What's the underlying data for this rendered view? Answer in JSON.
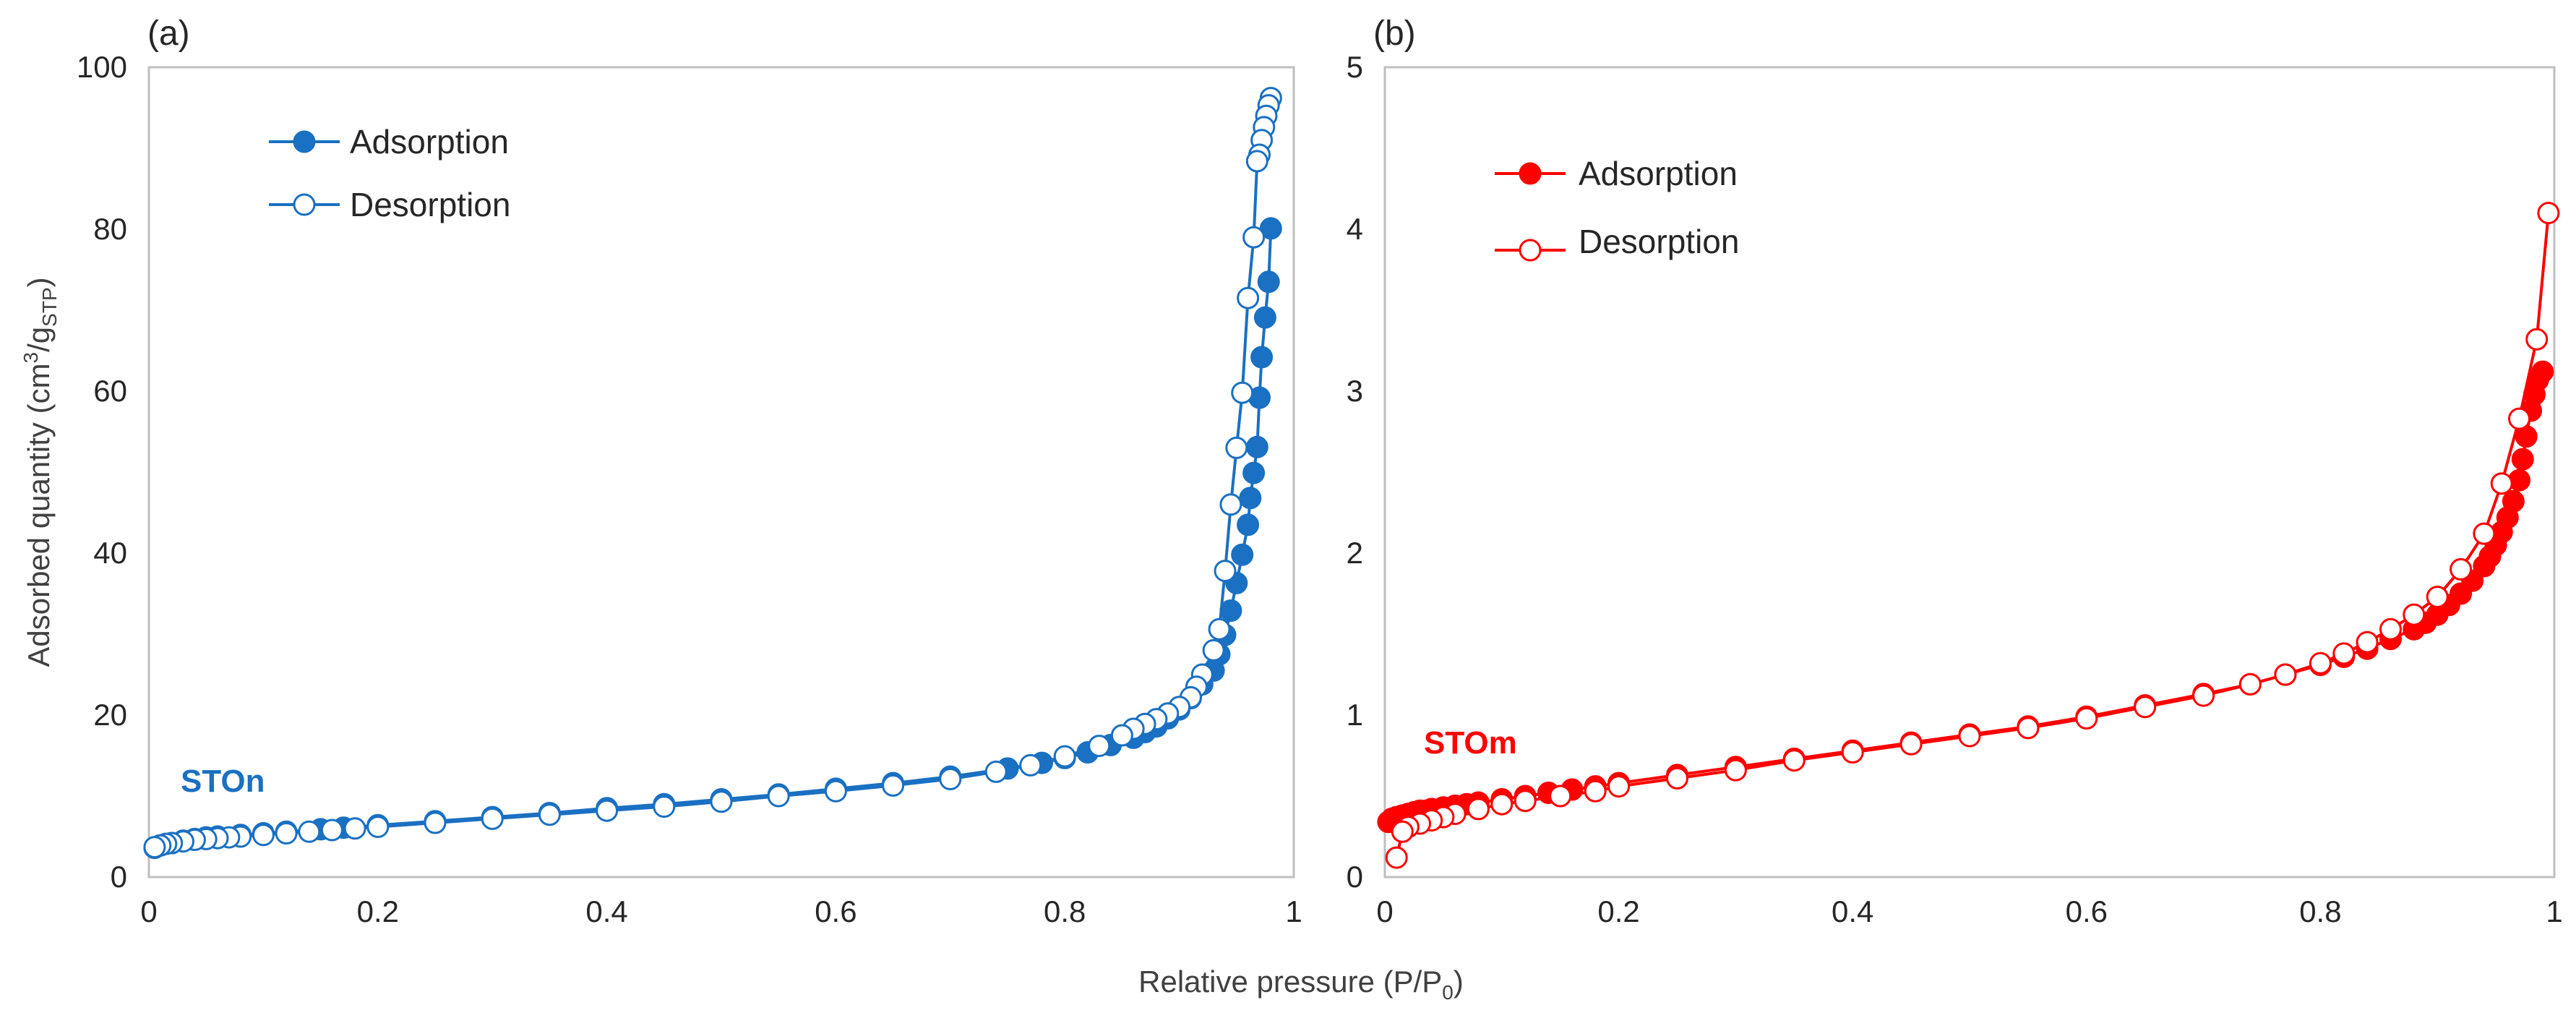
{
  "figure": {
    "x_label_text": "Relative pressure (P/P",
    "x_label_sub": "0",
    "x_label_close": ")"
  },
  "chart_data": [
    {
      "type": "scatter",
      "panel_label": "(a)",
      "sample_label": "STOn",
      "color": "#1a70c2",
      "ylabel_main": "Adsorbed quantity (cm",
      "ylabel_sup": "3",
      "ylabel_mid": "/g",
      "ylabel_sub": "STP",
      "ylabel_close": ")",
      "xlim": [
        0,
        1
      ],
      "ylim": [
        0,
        100
      ],
      "xticks": [
        0,
        0.2,
        0.4,
        0.6,
        0.8,
        1
      ],
      "xtick_labels": [
        "0",
        "0.2",
        "0.4",
        "0.6",
        "0.8",
        "1"
      ],
      "yticks": [
        0,
        20,
        40,
        60,
        80,
        100
      ],
      "ytick_labels": [
        "0",
        "20",
        "40",
        "60",
        "80",
        "100"
      ],
      "legend_position": "top-left",
      "series": [
        {
          "name": "Adsorption",
          "marker": "filled-circle",
          "x": [
            0.005,
            0.01,
            0.02,
            0.03,
            0.04,
            0.05,
            0.06,
            0.08,
            0.1,
            0.12,
            0.15,
            0.17,
            0.2,
            0.25,
            0.3,
            0.35,
            0.4,
            0.45,
            0.5,
            0.55,
            0.6,
            0.65,
            0.7,
            0.75,
            0.78,
            0.8,
            0.82,
            0.84,
            0.86,
            0.87,
            0.88,
            0.89,
            0.9,
            0.91,
            0.92,
            0.93,
            0.935,
            0.94,
            0.945,
            0.95,
            0.955,
            0.96,
            0.962,
            0.965,
            0.968,
            0.97,
            0.972,
            0.975,
            0.978,
            0.98
          ],
          "y": [
            3.6,
            3.9,
            4.2,
            4.5,
            4.7,
            4.9,
            5.0,
            5.2,
            5.4,
            5.6,
            5.9,
            6.1,
            6.4,
            6.9,
            7.4,
            7.9,
            8.5,
            9.0,
            9.6,
            10.2,
            10.9,
            11.6,
            12.4,
            13.4,
            14.1,
            14.7,
            15.4,
            16.3,
            17.2,
            17.9,
            18.6,
            19.6,
            20.7,
            22.1,
            23.8,
            25.5,
            27.5,
            29.9,
            32.9,
            36.3,
            39.8,
            43.5,
            46.8,
            49.9,
            53.1,
            59.2,
            64.2,
            69.1,
            73.5,
            80.1
          ]
        },
        {
          "name": "Desorption",
          "marker": "open-circle",
          "x": [
            0.98,
            0.978,
            0.976,
            0.974,
            0.972,
            0.97,
            0.968,
            0.965,
            0.96,
            0.955,
            0.95,
            0.945,
            0.94,
            0.935,
            0.93,
            0.92,
            0.915,
            0.91,
            0.9,
            0.89,
            0.88,
            0.87,
            0.86,
            0.85,
            0.83,
            0.8,
            0.77,
            0.74,
            0.7,
            0.65,
            0.6,
            0.55,
            0.5,
            0.45,
            0.4,
            0.35,
            0.3,
            0.25,
            0.2,
            0.18,
            0.16,
            0.14,
            0.12,
            0.1,
            0.08,
            0.07,
            0.06,
            0.05,
            0.04,
            0.03,
            0.02,
            0.015,
            0.01,
            0.005
          ],
          "y": [
            96.2,
            95.3,
            94.0,
            92.6,
            91.0,
            89.2,
            88.4,
            79.0,
            71.5,
            59.8,
            53.0,
            46.0,
            37.8,
            30.6,
            28.0,
            25.0,
            23.5,
            22.2,
            21.0,
            20.2,
            19.5,
            18.9,
            18.3,
            17.5,
            16.2,
            14.9,
            13.8,
            13.0,
            12.1,
            11.3,
            10.6,
            10.0,
            9.3,
            8.7,
            8.2,
            7.7,
            7.2,
            6.7,
            6.2,
            6.0,
            5.8,
            5.6,
            5.4,
            5.2,
            5.0,
            4.9,
            4.8,
            4.7,
            4.6,
            4.4,
            4.2,
            4.1,
            3.9,
            3.7
          ]
        }
      ]
    },
    {
      "type": "scatter",
      "panel_label": "(b)",
      "sample_label": "STOm",
      "color": "#ff0000",
      "xlim": [
        0,
        1
      ],
      "ylim": [
        0,
        5
      ],
      "xticks": [
        0,
        0.2,
        0.4,
        0.6,
        0.8,
        1
      ],
      "xtick_labels": [
        "0",
        "0.2",
        "0.4",
        "0.6",
        "0.8",
        "1"
      ],
      "yticks": [
        0,
        1,
        2,
        3,
        4,
        5
      ],
      "ytick_labels": [
        "0",
        "1",
        "2",
        "3",
        "4",
        "5"
      ],
      "legend_position": "top-left",
      "series": [
        {
          "name": "Adsorption",
          "marker": "filled-circle",
          "x": [
            0.003,
            0.006,
            0.01,
            0.015,
            0.02,
            0.025,
            0.03,
            0.035,
            0.04,
            0.05,
            0.06,
            0.07,
            0.08,
            0.1,
            0.12,
            0.14,
            0.16,
            0.18,
            0.2,
            0.25,
            0.3,
            0.35,
            0.4,
            0.45,
            0.5,
            0.55,
            0.6,
            0.65,
            0.7,
            0.74,
            0.77,
            0.8,
            0.82,
            0.84,
            0.86,
            0.88,
            0.89,
            0.9,
            0.91,
            0.92,
            0.93,
            0.94,
            0.945,
            0.95,
            0.955,
            0.96,
            0.965,
            0.97,
            0.973,
            0.976,
            0.98,
            0.983,
            0.986,
            0.99
          ],
          "y": [
            0.34,
            0.36,
            0.37,
            0.38,
            0.39,
            0.4,
            0.41,
            0.41,
            0.42,
            0.43,
            0.44,
            0.45,
            0.46,
            0.48,
            0.5,
            0.52,
            0.54,
            0.56,
            0.58,
            0.63,
            0.68,
            0.73,
            0.78,
            0.83,
            0.88,
            0.93,
            0.99,
            1.06,
            1.13,
            1.19,
            1.25,
            1.31,
            1.36,
            1.41,
            1.47,
            1.53,
            1.57,
            1.62,
            1.68,
            1.75,
            1.83,
            1.92,
            1.98,
            2.05,
            2.13,
            2.22,
            2.32,
            2.45,
            2.58,
            2.72,
            2.88,
            2.98,
            3.07,
            3.12
          ]
        },
        {
          "name": "Desorption",
          "marker": "open-circle",
          "x": [
            0.995,
            0.985,
            0.97,
            0.955,
            0.94,
            0.92,
            0.9,
            0.88,
            0.86,
            0.84,
            0.82,
            0.8,
            0.77,
            0.74,
            0.7,
            0.65,
            0.6,
            0.55,
            0.5,
            0.45,
            0.4,
            0.35,
            0.3,
            0.25,
            0.2,
            0.18,
            0.15,
            0.12,
            0.1,
            0.08,
            0.06,
            0.05,
            0.04,
            0.03,
            0.02,
            0.015,
            0.01
          ],
          "y": [
            4.1,
            3.32,
            2.83,
            2.43,
            2.12,
            1.9,
            1.73,
            1.62,
            1.53,
            1.45,
            1.38,
            1.32,
            1.25,
            1.19,
            1.12,
            1.05,
            0.98,
            0.92,
            0.87,
            0.82,
            0.77,
            0.72,
            0.66,
            0.61,
            0.56,
            0.53,
            0.5,
            0.47,
            0.45,
            0.42,
            0.39,
            0.37,
            0.35,
            0.33,
            0.31,
            0.28,
            0.12
          ]
        }
      ]
    }
  ]
}
